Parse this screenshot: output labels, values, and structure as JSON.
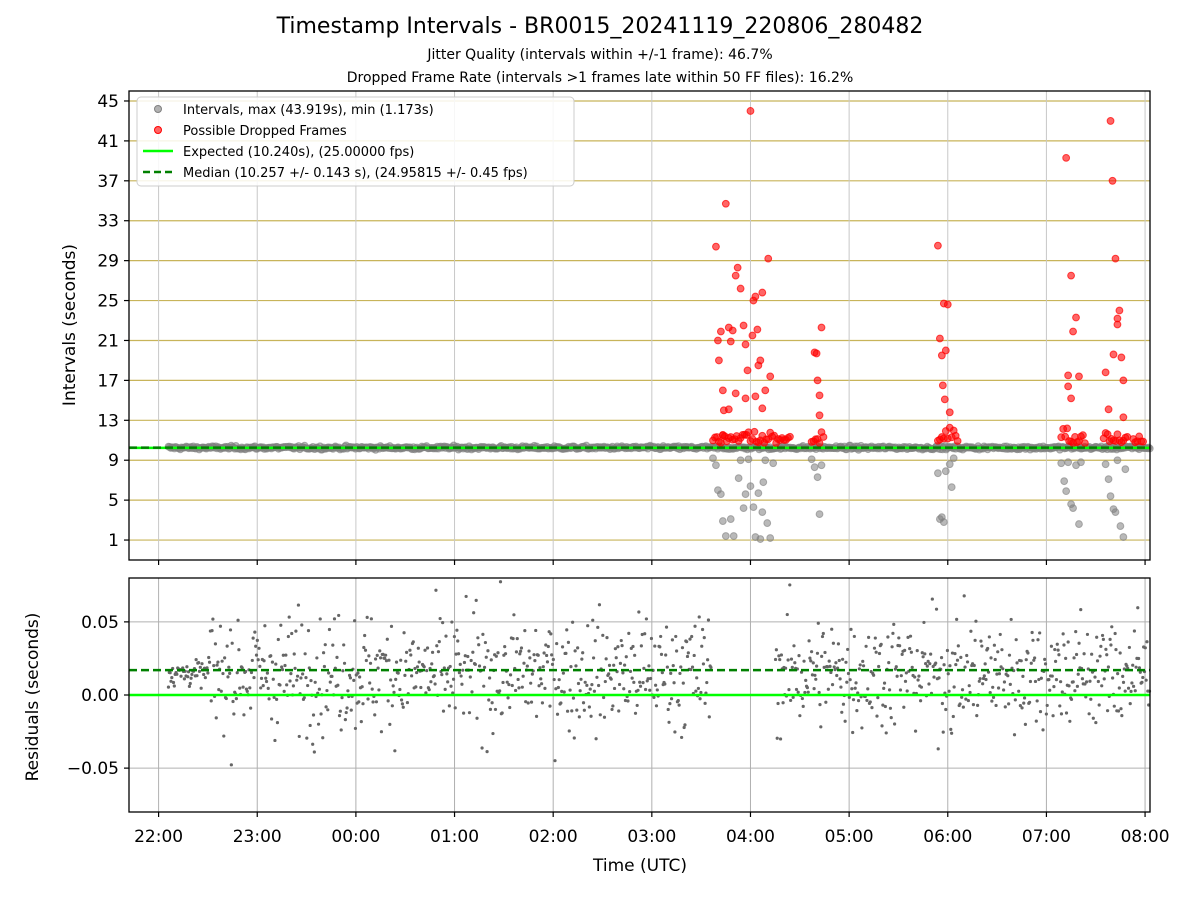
{
  "title": "Timestamp Intervals - BR0015_20241119_220806_280482",
  "subtitle_1": "Jitter Quality (intervals within +/-1 frame): 46.7%",
  "subtitle_2": "Dropped Frame Rate (intervals >1 frames late within 50 FF files): 16.2%",
  "colors": {
    "interval_points": "#808080",
    "dropped_points": "#ff0000",
    "expected_line": "#00ff00",
    "median_line": "#008000",
    "upper_grid": "#c8b45a",
    "lower_grid": "#b0b0b0",
    "residual_points": "#666666"
  },
  "chart_data": [
    {
      "type": "scatter",
      "panel": "upper",
      "xlabel": "",
      "ylabel": "Intervals (seconds)",
      "x_ticks": [
        "22:00",
        "23:00",
        "00:00",
        "01:00",
        "02:00",
        "03:00",
        "04:00",
        "05:00",
        "06:00",
        "07:00",
        "08:00"
      ],
      "y_ticks": [
        1,
        5,
        9,
        13,
        17,
        21,
        25,
        29,
        33,
        37,
        41,
        45
      ],
      "ylim": [
        -1,
        46
      ],
      "xlim_hours": [
        21.7,
        32.05
      ],
      "grid": "horizontal major lines",
      "legend_position": "upper-left",
      "legend": [
        "Intervals, max (43.919s), min (1.173s)",
        "Possible Dropped Frames",
        "Expected (10.240s), (25.00000 fps)",
        "Median (10.257 +/- 0.143 s), (24.95815 +/- 0.45 fps)"
      ],
      "reference_lines": [
        {
          "name": "Expected",
          "y": 10.24
        },
        {
          "name": "Median",
          "y": 10.257
        }
      ],
      "series": [
        {
          "name": "Intervals, max (43.919s), min (1.173s)",
          "kind": "scatter",
          "x_range_hours": [
            22.1,
            32.05
          ],
          "typical_y": 10.25,
          "points": [
            [
              27.62,
              9.2
            ],
            [
              27.65,
              8.5
            ],
            [
              27.67,
              6.0
            ],
            [
              27.7,
              5.6
            ],
            [
              27.72,
              2.9
            ],
            [
              27.75,
              1.4
            ],
            [
              27.8,
              3.1
            ],
            [
              27.83,
              1.4
            ],
            [
              27.88,
              7.2
            ],
            [
              27.9,
              9.0
            ],
            [
              27.93,
              4.2
            ],
            [
              27.95,
              5.6
            ],
            [
              27.98,
              9.1
            ],
            [
              28.0,
              6.4
            ],
            [
              28.03,
              4.3
            ],
            [
              28.05,
              1.3
            ],
            [
              28.08,
              5.7
            ],
            [
              28.1,
              1.1
            ],
            [
              28.12,
              3.8
            ],
            [
              28.13,
              6.8
            ],
            [
              28.15,
              9.0
            ],
            [
              28.17,
              2.7
            ],
            [
              28.2,
              1.2
            ],
            [
              28.23,
              8.7
            ],
            [
              28.62,
              9.1
            ],
            [
              28.65,
              8.3
            ],
            [
              28.68,
              7.3
            ],
            [
              28.7,
              3.6
            ],
            [
              28.72,
              8.5
            ],
            [
              29.9,
              7.7
            ],
            [
              29.92,
              3.1
            ],
            [
              29.94,
              3.3
            ],
            [
              29.96,
              2.8
            ],
            [
              29.98,
              7.9
            ],
            [
              30.02,
              8.6
            ],
            [
              30.04,
              6.3
            ],
            [
              30.06,
              9.2
            ],
            [
              31.15,
              8.7
            ],
            [
              31.18,
              6.9
            ],
            [
              31.2,
              5.9
            ],
            [
              31.22,
              8.8
            ],
            [
              31.25,
              4.6
            ],
            [
              31.27,
              4.2
            ],
            [
              31.3,
              8.5
            ],
            [
              31.33,
              2.6
            ],
            [
              31.35,
              8.8
            ],
            [
              31.6,
              8.6
            ],
            [
              31.63,
              7.1
            ],
            [
              31.65,
              5.4
            ],
            [
              31.68,
              4.1
            ],
            [
              31.7,
              3.8
            ],
            [
              31.72,
              9.0
            ],
            [
              31.75,
              2.4
            ],
            [
              31.78,
              1.3
            ],
            [
              31.8,
              8.1
            ]
          ]
        },
        {
          "name": "Possible Dropped Frames",
          "kind": "scatter",
          "points": [
            [
              27.65,
              30.4
            ],
            [
              27.67,
              21.0
            ],
            [
              27.68,
              19.0
            ],
            [
              27.7,
              21.9
            ],
            [
              27.72,
              16.0
            ],
            [
              27.73,
              14.0
            ],
            [
              27.75,
              34.7
            ],
            [
              27.78,
              22.3
            ],
            [
              27.8,
              20.9
            ],
            [
              27.82,
              22.0
            ],
            [
              27.85,
              27.5
            ],
            [
              27.87,
              28.3
            ],
            [
              27.9,
              26.2
            ],
            [
              27.93,
              22.5
            ],
            [
              27.95,
              20.6
            ],
            [
              27.97,
              18.0
            ],
            [
              28.0,
              44.0
            ],
            [
              28.02,
              21.5
            ],
            [
              28.03,
              25.0
            ],
            [
              28.05,
              25.4
            ],
            [
              28.07,
              22.1
            ],
            [
              28.08,
              18.5
            ],
            [
              28.1,
              19.0
            ],
            [
              28.12,
              25.8
            ],
            [
              28.15,
              16.0
            ],
            [
              28.18,
              29.2
            ],
            [
              28.2,
              17.4
            ],
            [
              27.72,
              11.5
            ],
            [
              27.78,
              14.1
            ],
            [
              27.85,
              15.7
            ],
            [
              27.95,
              15.2
            ],
            [
              28.05,
              15.4
            ],
            [
              28.12,
              14.2
            ],
            [
              28.65,
              19.8
            ],
            [
              28.67,
              19.7
            ],
            [
              28.68,
              17.0
            ],
            [
              28.7,
              15.5
            ],
            [
              28.72,
              22.3
            ],
            [
              28.7,
              13.5
            ],
            [
              29.9,
              30.5
            ],
            [
              29.92,
              21.2
            ],
            [
              29.94,
              19.5
            ],
            [
              29.96,
              24.7
            ],
            [
              29.98,
              20.0
            ],
            [
              30.0,
              24.6
            ],
            [
              29.95,
              16.5
            ],
            [
              29.97,
              15.1
            ],
            [
              30.02,
              13.8
            ],
            [
              31.2,
              39.3
            ],
            [
              31.22,
              17.5
            ],
            [
              31.25,
              27.5
            ],
            [
              31.27,
              21.9
            ],
            [
              31.3,
              23.3
            ],
            [
              31.33,
              17.4
            ],
            [
              31.22,
              16.4
            ],
            [
              31.25,
              15.2
            ],
            [
              31.65,
              43.0
            ],
            [
              31.67,
              37.0
            ],
            [
              31.7,
              29.2
            ],
            [
              31.72,
              22.6
            ],
            [
              31.74,
              24.0
            ],
            [
              31.76,
              19.3
            ],
            [
              31.78,
              17.0
            ],
            [
              31.6,
              17.8
            ],
            [
              31.63,
              14.1
            ],
            [
              31.68,
              19.6
            ],
            [
              31.72,
              23.2
            ],
            [
              31.78,
              13.3
            ]
          ]
        }
      ]
    },
    {
      "type": "scatter",
      "panel": "lower",
      "xlabel": "Time (UTC)",
      "ylabel": "Residuals (seconds)",
      "y_ticks": [
        "0.05",
        "0.00",
        "−0.05"
      ],
      "ylim": [
        -0.08,
        0.08
      ],
      "grid": "both axes",
      "reference_lines": [
        {
          "name": "Expected",
          "y": 0.0
        },
        {
          "name": "Median",
          "y": 0.017
        }
      ],
      "series": [
        {
          "name": "Residuals",
          "kind": "scatter",
          "x_range_hours": [
            22.1,
            32.05
          ],
          "gap_hours": [
            27.6,
            28.25
          ],
          "concentration_y": 0.015,
          "spread": 0.08
        }
      ]
    }
  ]
}
